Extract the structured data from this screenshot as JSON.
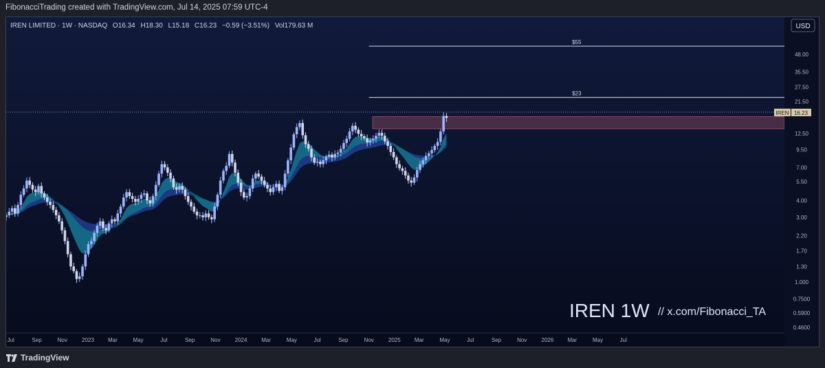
{
  "header": {
    "text": "FibonacciTrading created with TradingView.com, Jul 14, 2025 07:59 UTC-4"
  },
  "footer": {
    "brand": "TradingView"
  },
  "icons": {
    "logo": "tradingview-logo-icon"
  },
  "colors": {
    "background": "#0a0f24",
    "up": "#9bb4ff",
    "down": "#cfd6ea",
    "ribbon_outer": "#2a58c6",
    "ribbon_inner": "#0f8f8a",
    "zone": "#e06c7a"
  },
  "legend": {
    "symbol": "IREN LIMITED · 1W · NASDAQ",
    "o_label": "O",
    "o": "16.34",
    "h_label": "H",
    "h": "18.30",
    "l_label": "L",
    "l": "15.18",
    "c_label": "C",
    "c": "16.23",
    "change": "−0.59 (−3.51%)",
    "vol_label": "Vol",
    "vol": "179.63 M"
  },
  "currency_button": "USD",
  "price_tag": {
    "symbol": "IREN",
    "value": "16.23"
  },
  "watermark": {
    "ticker": "IREN 1W",
    "handle": "//  x.com/Fibonacci_TA"
  },
  "chart_data": {
    "type": "candlestick",
    "title": "IREN LIMITED · 1W · NASDAQ",
    "y_scale": "log",
    "ylim": [
      0.42,
      90
    ],
    "x_range": [
      "2022-06-20",
      "2027-07-20"
    ],
    "last_close": 16.23,
    "y_ticks": [
      "48.00",
      "35.50",
      "27.50",
      "21.50",
      "12.50",
      "9.50",
      "7.00",
      "5.50",
      "4.00",
      "3.00",
      "2.20",
      "1.70",
      "1.30",
      "1.000",
      "0.7500",
      "0.5900",
      "0.4600"
    ],
    "x_ticks": [
      {
        "label": "Jul",
        "date": "2022-07-01"
      },
      {
        "label": "Sep",
        "date": "2022-09-01"
      },
      {
        "label": "Nov",
        "date": "2022-11-01"
      },
      {
        "label": "2023",
        "date": "2023-01-01"
      },
      {
        "label": "Mar",
        "date": "2023-03-01"
      },
      {
        "label": "May",
        "date": "2023-05-01"
      },
      {
        "label": "Jul",
        "date": "2023-07-01"
      },
      {
        "label": "Sep",
        "date": "2023-09-01"
      },
      {
        "label": "Nov",
        "date": "2023-11-01"
      },
      {
        "label": "2024",
        "date": "2024-01-01"
      },
      {
        "label": "Mar",
        "date": "2024-03-01"
      },
      {
        "label": "May",
        "date": "2024-05-01"
      },
      {
        "label": "Jul",
        "date": "2024-07-01"
      },
      {
        "label": "Sep",
        "date": "2024-09-01"
      },
      {
        "label": "Nov",
        "date": "2024-11-01"
      },
      {
        "label": "2025",
        "date": "2025-01-01"
      },
      {
        "label": "Mar",
        "date": "2025-03-01"
      },
      {
        "label": "May",
        "date": "2025-05-01"
      },
      {
        "label": "Jul",
        "date": "2025-07-01"
      },
      {
        "label": "Sep",
        "date": "2025-09-01"
      },
      {
        "label": "Nov",
        "date": "2025-11-01"
      },
      {
        "label": "2026",
        "date": "2026-01-01"
      },
      {
        "label": "Mar",
        "date": "2026-03-01"
      },
      {
        "label": "May",
        "date": "2026-05-01"
      },
      {
        "label": "Jul",
        "date": "2026-07-01"
      }
    ],
    "price_levels": [
      {
        "label": "$55",
        "value": 55,
        "from": "2024-11-01",
        "to": "2027-07-20"
      },
      {
        "label": "$23",
        "value": 23,
        "from": "2024-11-01",
        "to": "2027-07-20"
      }
    ],
    "zone": {
      "low": 13.5,
      "high": 16.6,
      "from": "2024-11-10",
      "to": "2027-07-20"
    },
    "weekly_closes": {
      "start": "2022-06-20",
      "closes": [
        3.1,
        3.3,
        3.5,
        3.2,
        3.7,
        4.4,
        4.9,
        5.6,
        5.2,
        4.8,
        4.6,
        5.1,
        4.5,
        4.2,
        3.9,
        3.7,
        3.4,
        3.1,
        2.8,
        2.4,
        2.0,
        1.6,
        1.3,
        1.2,
        1.05,
        1.1,
        1.3,
        1.6,
        1.9,
        2.0,
        2.3,
        2.6,
        2.8,
        2.5,
        2.4,
        2.7,
        2.9,
        2.8,
        3.2,
        3.6,
        4.2,
        4.6,
        4.3,
        4.1,
        3.9,
        4.1,
        4.4,
        4.5,
        4.0,
        3.8,
        4.3,
        5.2,
        6.3,
        7.4,
        7.0,
        6.4,
        5.8,
        5.0,
        4.8,
        5.1,
        4.8,
        4.3,
        3.9,
        3.6,
        3.3,
        3.1,
        3.1,
        3.0,
        3.2,
        3.0,
        2.9,
        3.6,
        4.4,
        5.6,
        6.6,
        7.2,
        8.8,
        7.6,
        6.4,
        5.4,
        4.6,
        4.2,
        4.3,
        4.9,
        5.8,
        6.3,
        6.0,
        5.6,
        5.2,
        4.9,
        4.6,
        5.0,
        5.3,
        4.7,
        5.0,
        6.3,
        7.9,
        9.8,
        12.3,
        13.9,
        14.9,
        12.1,
        10.4,
        9.6,
        8.3,
        7.6,
        7.7,
        7.4,
        7.9,
        8.4,
        8.7,
        8.3,
        8.8,
        9.0,
        9.6,
        10.6,
        11.4,
        12.9,
        14.2,
        13.3,
        12.4,
        11.9,
        11.5,
        10.7,
        11.1,
        11.4,
        12.0,
        12.6,
        12.0,
        10.9,
        10.1,
        9.1,
        8.3,
        7.4,
        6.9,
        6.6,
        6.1,
        5.6,
        5.4,
        5.9,
        6.7,
        7.4,
        7.9,
        8.5,
        8.9,
        9.4,
        10.1,
        10.8,
        12.9,
        16.8,
        16.23
      ]
    }
  }
}
